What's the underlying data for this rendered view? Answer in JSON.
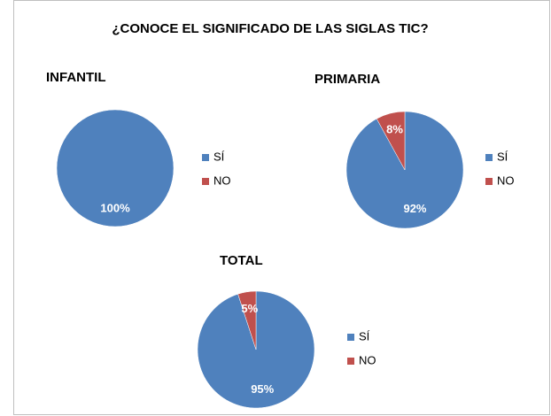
{
  "title": "¿CONOCE EL SIGNIFICADO DE LAS SIGLAS TIC?",
  "chart_data": [
    {
      "type": "pie",
      "title": "INFANTIL",
      "categories": [
        "SÍ",
        "NO"
      ],
      "values": [
        100,
        0
      ],
      "value_labels": [
        "100%",
        null
      ],
      "colors": [
        "#4f81bd",
        "#c0504d"
      ]
    },
    {
      "type": "pie",
      "title": "PRIMARIA",
      "categories": [
        "SÍ",
        "NO"
      ],
      "values": [
        92,
        8
      ],
      "value_labels": [
        "92%",
        "8%"
      ],
      "colors": [
        "#4f81bd",
        "#c0504d"
      ]
    },
    {
      "type": "pie",
      "title": "TOTAL",
      "categories": [
        "SÍ",
        "NO"
      ],
      "values": [
        95,
        5
      ],
      "value_labels": [
        "95%",
        "5%"
      ],
      "colors": [
        "#4f81bd",
        "#c0504d"
      ]
    }
  ]
}
